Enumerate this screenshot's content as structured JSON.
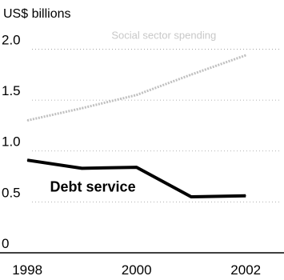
{
  "chart_data": {
    "type": "line",
    "title": "",
    "ylabel": "US$ billions",
    "xlabel": "",
    "ylim": [
      0,
      2.2
    ],
    "xlim": [
      1997.5,
      2002.7
    ],
    "grid": "dotted horizontal",
    "y_ticks": [
      {
        "value": 0,
        "label": "0"
      },
      {
        "value": 0.5,
        "label": "0.5"
      },
      {
        "value": 1.0,
        "label": "1.0"
      },
      {
        "value": 1.5,
        "label": "1.5"
      },
      {
        "value": 2.0,
        "label": "2.0"
      }
    ],
    "x_ticks": [
      {
        "value": 1998,
        "label": "1998"
      },
      {
        "value": 2000,
        "label": "2000"
      },
      {
        "value": 2002,
        "label": "2002"
      }
    ],
    "series": [
      {
        "name": "Debt service",
        "color": "#000000",
        "style": "solid",
        "x": [
          1998,
          1999,
          2000,
          2001,
          2002
        ],
        "values": [
          0.91,
          0.83,
          0.84,
          0.55,
          0.56
        ]
      },
      {
        "name": "Social sector spending",
        "color": "#c0c0c0",
        "style": "dashed",
        "x": [
          1998,
          1999,
          2000,
          2001,
          2002
        ],
        "values": [
          1.3,
          1.42,
          1.55,
          1.75,
          1.94
        ]
      }
    ],
    "annotations": [
      {
        "text": "Debt service",
        "x": 1999.2,
        "y": 0.6,
        "style": "bold"
      },
      {
        "text": "Social sector spending",
        "x": 2000.5,
        "y": 2.1,
        "style": "faint"
      }
    ]
  }
}
